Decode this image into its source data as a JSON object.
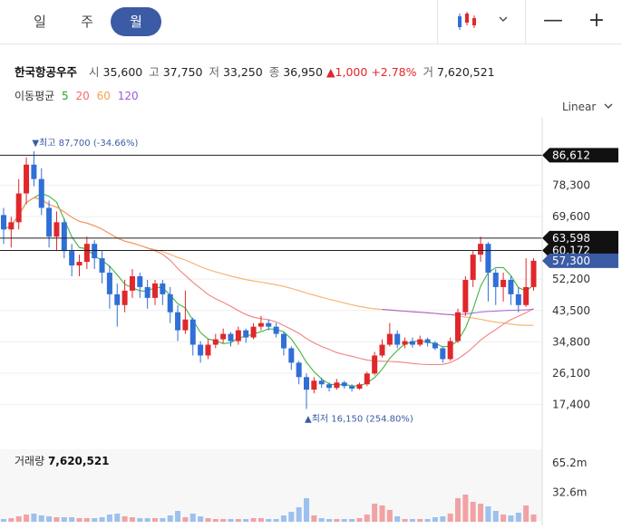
{
  "tabs": [
    "일",
    "주",
    "월"
  ],
  "active_tab": 2,
  "toolbar": {
    "chart_icon": "candlestick-icon",
    "dropdown_icon": "chevron-down-icon",
    "zoom_out": "—",
    "zoom_in": "+"
  },
  "stock": {
    "name": "한국항공우주",
    "open_label": "시",
    "open": "35,600",
    "high_label": "고",
    "high": "37,750",
    "low_label": "저",
    "low": "33,250",
    "close_label": "종",
    "close": "36,950",
    "change": "▲1,000",
    "change_pct": "+2.78%",
    "volume_label": "거",
    "volume": "7,620,521"
  },
  "ma_legend": {
    "label": "이동평균",
    "ma5": "5",
    "ma20": "20",
    "ma60": "60",
    "ma120": "120"
  },
  "scale_mode": "Linear",
  "colors": {
    "up": "#e0272b",
    "down": "#2f6fd6",
    "ma5": "#21a721",
    "ma20": "#f06b6b",
    "ma60": "#f6a050",
    "ma120": "#9a5cd8",
    "accent": "#3b5ba5"
  },
  "volume_panel": {
    "label": "거래량",
    "value": "7,620,521"
  },
  "chart_data": {
    "type": "candlestick",
    "price_ticks": [
      "78,300",
      "69,600",
      "52,200",
      "43,500",
      "34,800",
      "26,100",
      "17,400"
    ],
    "price_axis": {
      "min": 12000,
      "max": 95000
    },
    "price_tags": [
      {
        "label": "86,612",
        "value": 86612,
        "style": "dark"
      },
      {
        "label": "63,598",
        "value": 63598,
        "style": "dark"
      },
      {
        "label": "60,172",
        "value": 60172,
        "style": "dark"
      },
      {
        "label": "57,300",
        "value": 57300,
        "style": "blue"
      }
    ],
    "annotations": [
      {
        "text": "▼최고 87,700 (-34.66%)",
        "value": 87700,
        "index": 4,
        "pos": "above"
      },
      {
        "text": "▲최저 16,150 (254.80%)",
        "value": 16150,
        "index": 40,
        "pos": "below"
      }
    ],
    "candles": [
      [
        70000,
        66000,
        72000,
        62000
      ],
      [
        66000,
        68000,
        69500,
        61000
      ],
      [
        68000,
        76000,
        80000,
        66000
      ],
      [
        76000,
        84000,
        86000,
        73000
      ],
      [
        84000,
        80000,
        87700,
        78000
      ],
      [
        80000,
        72000,
        83000,
        70000
      ],
      [
        72000,
        64000,
        74000,
        61000
      ],
      [
        64000,
        68000,
        71000,
        60000
      ],
      [
        68000,
        60000,
        69000,
        58000
      ],
      [
        60000,
        56000,
        62000,
        53000
      ],
      [
        56000,
        57000,
        59000,
        53000
      ],
      [
        57000,
        62000,
        64000,
        55000
      ],
      [
        62000,
        58000,
        63000,
        55000
      ],
      [
        58000,
        54000,
        60000,
        51000
      ],
      [
        54000,
        48000,
        56000,
        44000
      ],
      [
        48000,
        45000,
        51000,
        39000
      ],
      [
        45000,
        49000,
        52000,
        43000
      ],
      [
        49000,
        53000,
        55000,
        47000
      ],
      [
        53000,
        50000,
        54000,
        47000
      ],
      [
        50000,
        47000,
        52000,
        44000
      ],
      [
        47000,
        51000,
        52000,
        45000
      ],
      [
        51000,
        48000,
        52000,
        45000
      ],
      [
        48000,
        43000,
        50000,
        40000
      ],
      [
        43000,
        38000,
        45000,
        35000
      ],
      [
        38000,
        41000,
        49000,
        37000
      ],
      [
        41000,
        34000,
        41500,
        31000
      ],
      [
        34000,
        31000,
        35000,
        29000
      ],
      [
        31000,
        34000,
        35500,
        30000
      ],
      [
        34000,
        35500,
        37000,
        33000
      ],
      [
        35500,
        37000,
        38500,
        34500
      ],
      [
        37000,
        35000,
        37500,
        33500
      ],
      [
        35000,
        38000,
        39000,
        34000
      ],
      [
        38000,
        36000,
        38500,
        34500
      ],
      [
        36000,
        39000,
        40000,
        35500
      ],
      [
        39000,
        40000,
        42000,
        38000
      ],
      [
        40000,
        39000,
        41000,
        38000
      ],
      [
        39000,
        37000,
        40000,
        36000
      ],
      [
        37000,
        33000,
        37500,
        31000
      ],
      [
        33000,
        29000,
        33500,
        27000
      ],
      [
        29000,
        25000,
        29500,
        23000
      ],
      [
        25000,
        21500,
        26000,
        16150
      ],
      [
        21500,
        24000,
        25000,
        20500
      ],
      [
        24000,
        23000,
        24800,
        22000
      ],
      [
        23000,
        22000,
        23500,
        21000
      ],
      [
        22000,
        23500,
        24500,
        21500
      ],
      [
        23500,
        22500,
        24000,
        21800
      ],
      [
        22500,
        21800,
        23000,
        21000
      ],
      [
        21800,
        23000,
        23500,
        21500
      ],
      [
        23000,
        26000,
        26500,
        22500
      ],
      [
        26000,
        31000,
        32000,
        25500
      ],
      [
        31000,
        34000,
        35500,
        30500
      ],
      [
        34000,
        37000,
        40000,
        33500
      ],
      [
        37000,
        34000,
        38000,
        33000
      ],
      [
        34000,
        35000,
        36000,
        33000
      ],
      [
        35000,
        34000,
        36000,
        33200
      ],
      [
        34000,
        35500,
        36500,
        33500
      ],
      [
        35500,
        34500,
        36000,
        33500
      ],
      [
        34500,
        33000,
        35000,
        32500
      ],
      [
        33000,
        30000,
        33500,
        29000
      ],
      [
        30000,
        35000,
        36000,
        29500
      ],
      [
        35000,
        43000,
        44000,
        34500
      ],
      [
        43000,
        52000,
        53000,
        42000
      ],
      [
        52000,
        59000,
        60000,
        50000
      ],
      [
        59000,
        62000,
        64000,
        57000
      ],
      [
        62000,
        54000,
        62500,
        46000
      ],
      [
        54000,
        50000,
        55000,
        45000
      ],
      [
        50000,
        52000,
        54000,
        46000
      ],
      [
        52000,
        48000,
        53000,
        45000
      ],
      [
        48000,
        45000,
        50000,
        43000
      ],
      [
        45000,
        50000,
        58000,
        44500
      ],
      [
        50000,
        57300,
        58000,
        49000
      ]
    ],
    "volumes": [
      3,
      4,
      6,
      8,
      9,
      7,
      6,
      5,
      5,
      5,
      4,
      4,
      4,
      5,
      8,
      9,
      6,
      5,
      4,
      4,
      4,
      4,
      7,
      12,
      5,
      9,
      6,
      4,
      3,
      3,
      3,
      3,
      3,
      4,
      4,
      3,
      3,
      7,
      11,
      16,
      26,
      7,
      4,
      3,
      3,
      3,
      3,
      4,
      8,
      20,
      18,
      13,
      6,
      3,
      3,
      3,
      3,
      5,
      6,
      9,
      26,
      30,
      22,
      20,
      17,
      12,
      8,
      7,
      10,
      18,
      8
    ],
    "volume_ticks": [
      "65.2m",
      "32.6m"
    ],
    "volume_axis": {
      "max": 80
    }
  }
}
